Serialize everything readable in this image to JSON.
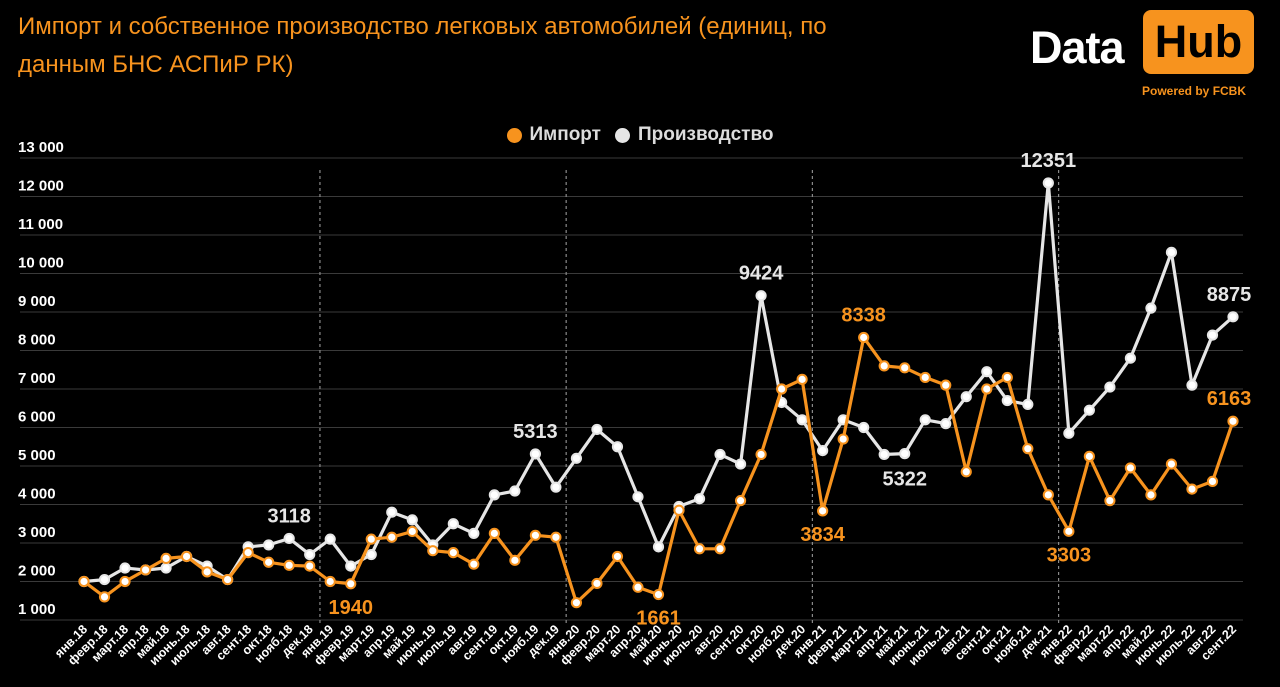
{
  "header": {
    "title": "Импорт и собственное производство легковых автомобилей (единиц, по данным БНС АСПиР РК)"
  },
  "logo": {
    "data": "Data",
    "hub": "Hub",
    "powered": "Powered by FCBK",
    "colors": {
      "hub_bg": "#f7931e",
      "powered": "#f7931e"
    }
  },
  "colors": {
    "background": "#000000",
    "title": "#f7931e",
    "import": "#f7931e",
    "production": "#e6e6e6",
    "grid": "#3a3a3a"
  },
  "legend": {
    "position": "top-center",
    "items": [
      {
        "label": "Импорт",
        "color": "#f7931e"
      },
      {
        "label": "Производство",
        "color": "#e6e6e6"
      }
    ]
  },
  "chart_data": {
    "type": "line",
    "title": "Импорт и собственное производство легковых автомобилей (единиц, по данным БНС АСПиР РК)",
    "xlabel": "",
    "ylabel": "",
    "ylim": [
      1000,
      13000
    ],
    "yticks": [
      "1 000",
      "2 000",
      "3 000",
      "4 000",
      "5 000",
      "6 000",
      "7 000",
      "8 000",
      "9 000",
      "10 000",
      "11 000",
      "12 000",
      "13 000"
    ],
    "grid": "horizontal",
    "year_separators_after": [
      "дек.18",
      "дек.19",
      "дек.20",
      "дек.21"
    ],
    "categories": [
      "янв.18",
      "февр.18",
      "март.18",
      "апр.18",
      "май.18",
      "июнь.18",
      "июль.18",
      "авг.18",
      "сент.18",
      "окт.18",
      "нояб.18",
      "дек.18",
      "янв.19",
      "февр.19",
      "март.19",
      "апр.19",
      "май.19",
      "июнь.19",
      "июль.19",
      "авг.19",
      "сент.19",
      "окт.19",
      "нояб.19",
      "дек.19",
      "янв.20",
      "февр.20",
      "март.20",
      "апр.20",
      "май.20",
      "июнь.20",
      "июль.20",
      "авг.20",
      "сент.20",
      "окт.20",
      "нояб.20",
      "дек.20",
      "янв.21",
      "февр.21",
      "март.21",
      "апр.21",
      "май.21",
      "июнь.21",
      "июль.21",
      "авг.21",
      "сент.21",
      "окт.21",
      "нояб.21",
      "дек.21",
      "янв.22",
      "февр.22",
      "март.22",
      "апр.22",
      "май.22",
      "июнь.22",
      "июль.22",
      "авг.22",
      "сент.22"
    ],
    "series": [
      {
        "name": "Импорт",
        "color": "#f7931e",
        "values": [
          2000,
          1600,
          2000,
          2300,
          2600,
          2650,
          2250,
          2050,
          2750,
          2500,
          2420,
          2400,
          2000,
          1940,
          3100,
          3150,
          3300,
          2800,
          2750,
          2450,
          3250,
          2550,
          3200,
          3150,
          1450,
          1950,
          2650,
          1850,
          1661,
          3850,
          2850,
          2850,
          4100,
          5300,
          7000,
          7250,
          3834,
          5700,
          8338,
          7600,
          7550,
          7300,
          7100,
          4850,
          7000,
          7300,
          5450,
          4250,
          3303,
          5250,
          4100,
          4950,
          4250,
          5050,
          4400,
          4600,
          6163
        ],
        "labels": [
          {
            "index": 13,
            "text": "1940"
          },
          {
            "index": 28,
            "text": "1661"
          },
          {
            "index": 36,
            "text": "3834"
          },
          {
            "index": 38,
            "text": "8338"
          },
          {
            "index": 48,
            "text": "3303"
          },
          {
            "index": 56,
            "text": "6163"
          }
        ]
      },
      {
        "name": "Производство",
        "color": "#e6e6e6",
        "values": [
          2000,
          2050,
          2350,
          2300,
          2350,
          2650,
          2400,
          2050,
          2900,
          2950,
          3118,
          2700,
          3100,
          2400,
          2700,
          3800,
          3600,
          2950,
          3500,
          3250,
          4250,
          4350,
          5313,
          4450,
          5200,
          5950,
          5500,
          4200,
          2900,
          3950,
          4150,
          5300,
          5050,
          9424,
          6650,
          6200,
          5400,
          6200,
          6000,
          5300,
          5322,
          6200,
          6100,
          6800,
          7450,
          6700,
          6600,
          12351,
          5850,
          6450,
          7050,
          7800,
          9100,
          10550,
          7100,
          8400,
          8875
        ],
        "labels": [
          {
            "index": 10,
            "text": "3118"
          },
          {
            "index": 22,
            "text": "5313"
          },
          {
            "index": 33,
            "text": "9424"
          },
          {
            "index": 40,
            "text": "5322"
          },
          {
            "index": 47,
            "text": "12351"
          },
          {
            "index": 56,
            "text": "8875"
          }
        ]
      }
    ]
  }
}
